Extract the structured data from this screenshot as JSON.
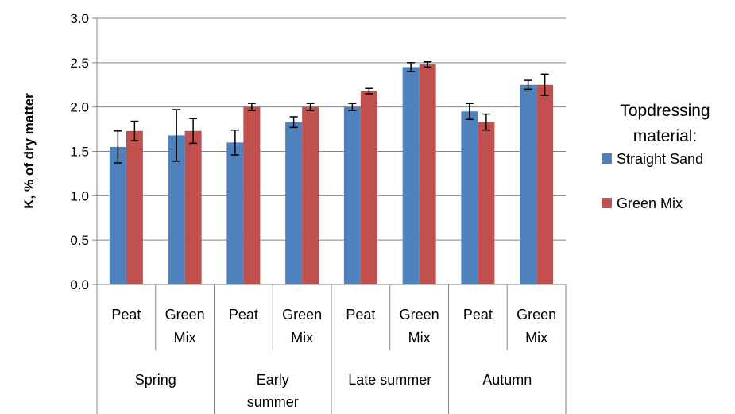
{
  "chart_data": {
    "type": "bar",
    "ylabel": "K, % of dry matter",
    "ylim": [
      0,
      3.0
    ],
    "yticks": [
      "0.0",
      "0.5",
      "1.0",
      "1.5",
      "2.0",
      "2.5",
      "3.0"
    ],
    "grid": true,
    "legend_title": "Topdressing material:",
    "legend_position": "right",
    "groups": [
      {
        "label": "Spring",
        "sub": [
          [
            "Peat"
          ],
          [
            "Green",
            "Mix"
          ]
        ]
      },
      {
        "label": "Early summer",
        "lines": [
          "Early",
          "summer"
        ],
        "sub": [
          [
            "Peat"
          ],
          [
            "Green",
            "Mix"
          ]
        ]
      },
      {
        "label": "Late summer",
        "sub": [
          [
            "Peat"
          ],
          [
            "Green",
            "Mix"
          ]
        ]
      },
      {
        "label": "Autumn",
        "sub": [
          [
            "Peat"
          ],
          [
            "Green",
            "Mix"
          ]
        ]
      }
    ],
    "series": [
      {
        "name": "Straight Sand",
        "color": "#4F81BD",
        "values": [
          1.55,
          1.68,
          1.6,
          1.83,
          2.0,
          2.45,
          1.95,
          2.25
        ],
        "errors": [
          0.18,
          0.29,
          0.14,
          0.06,
          0.04,
          0.05,
          0.09,
          0.05
        ]
      },
      {
        "name": "Green Mix",
        "color": "#C0504D",
        "values": [
          1.73,
          1.73,
          2.0,
          2.0,
          2.18,
          2.48,
          1.83,
          2.25
        ],
        "errors": [
          0.11,
          0.14,
          0.04,
          0.04,
          0.03,
          0.03,
          0.09,
          0.12
        ]
      }
    ]
  }
}
